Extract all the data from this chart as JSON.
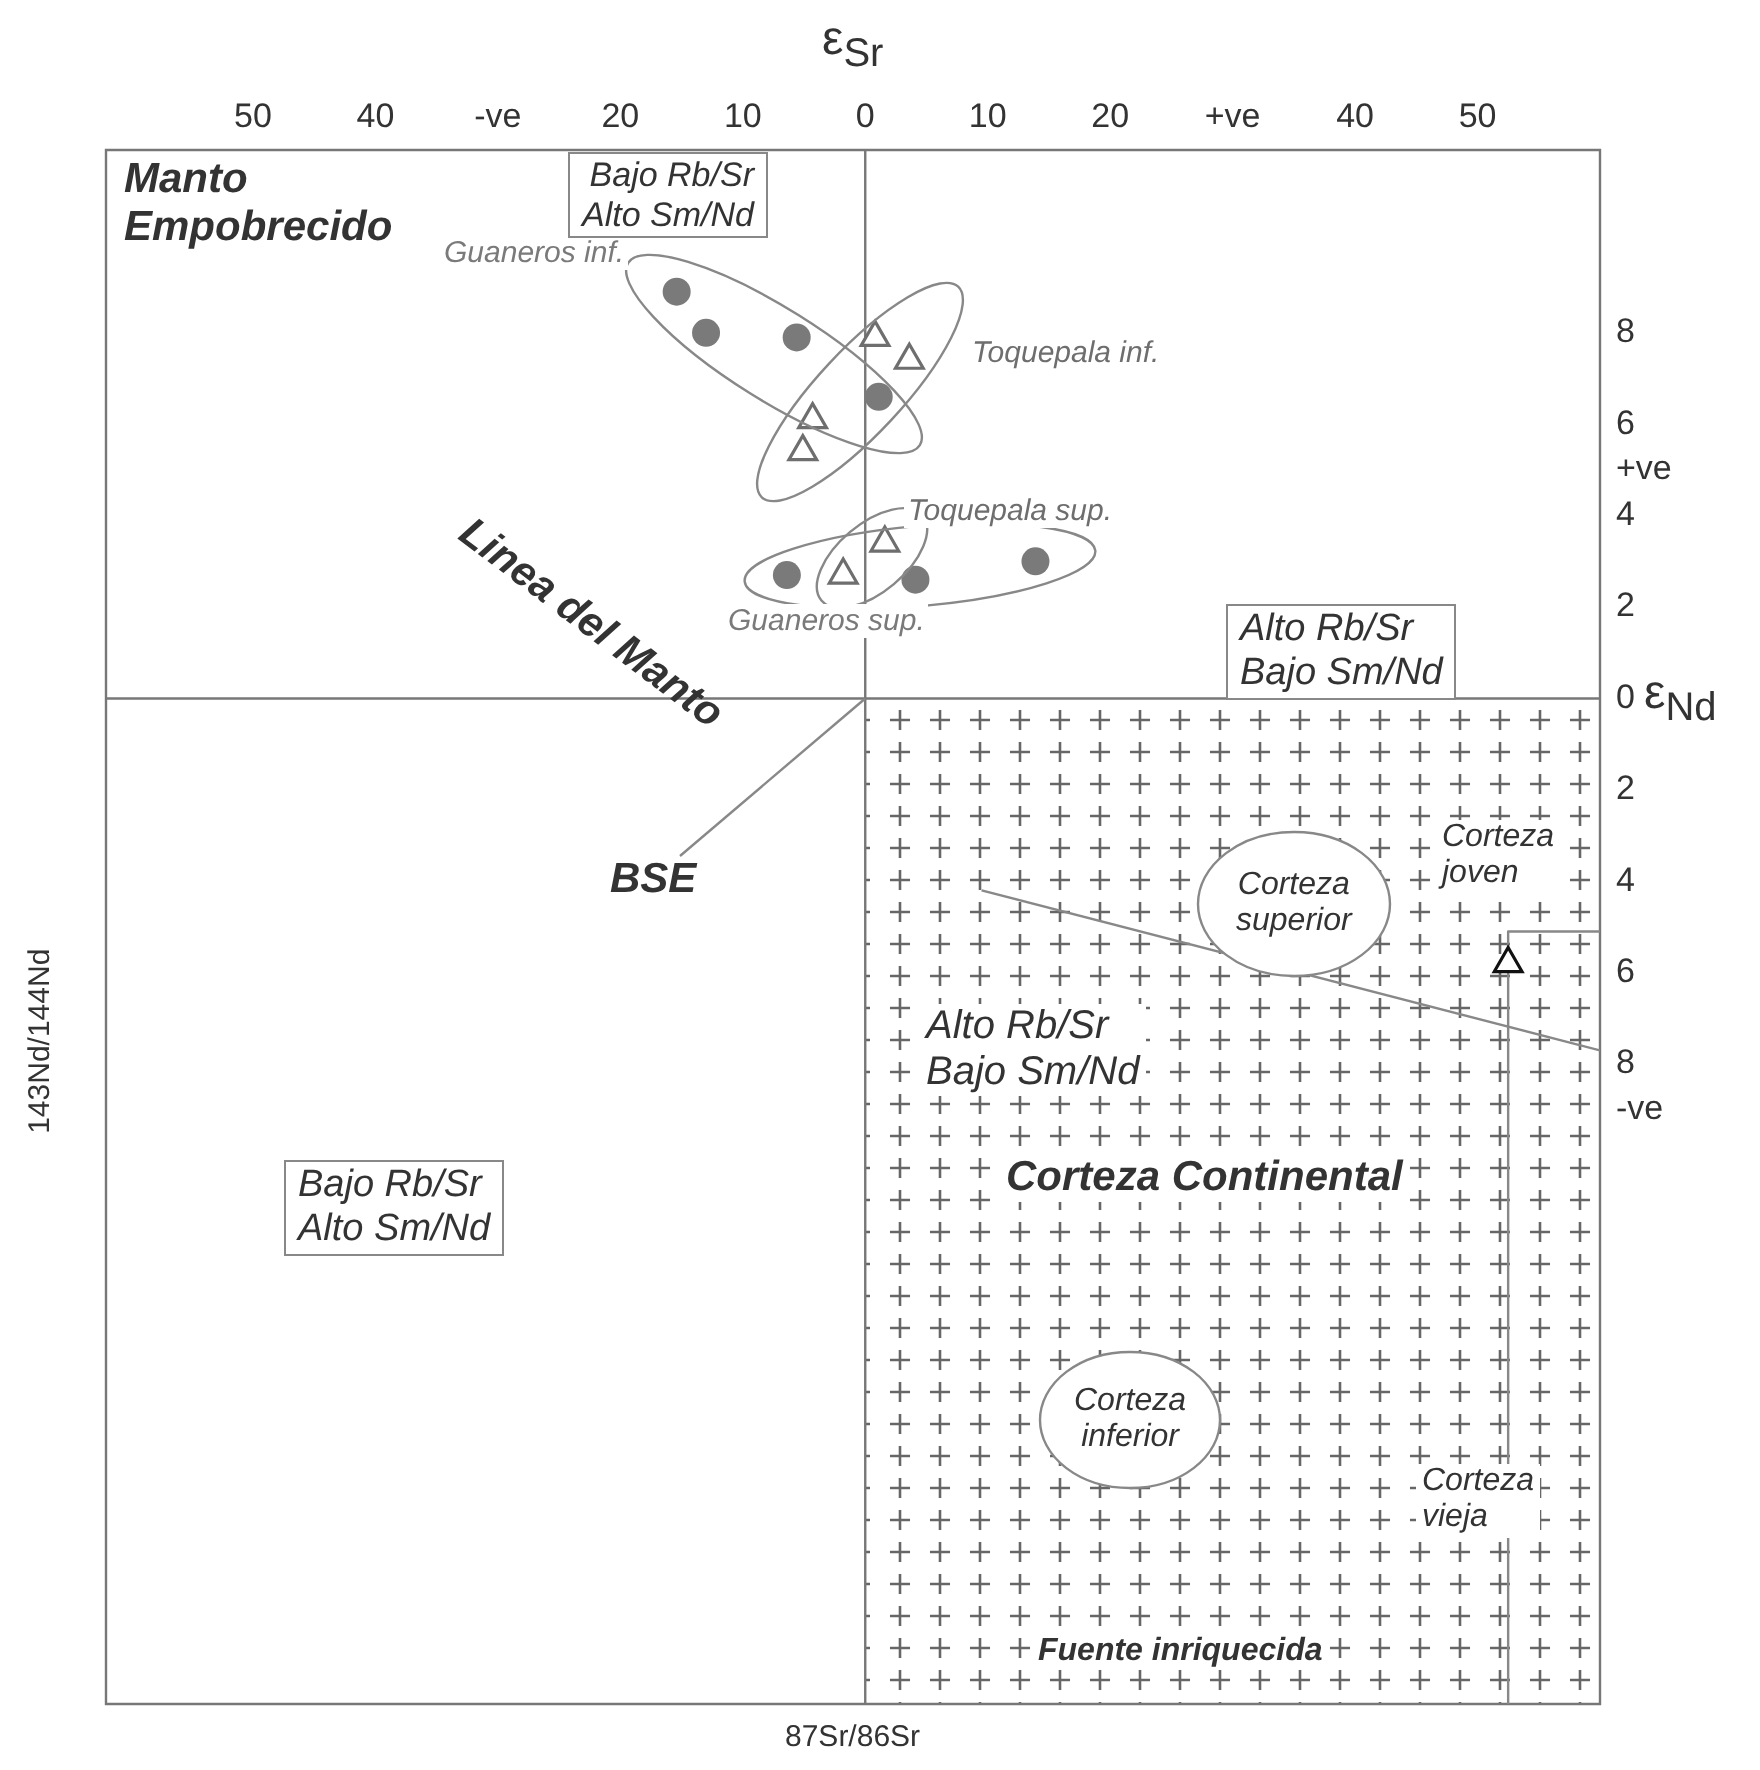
{
  "chart_data": {
    "type": "scatter",
    "xlabel": "ε$_{Sr}$",
    "ylabel": "ε$_{Nd}$",
    "xlim": [
      -62,
      60
    ],
    "ylim": [
      -22,
      12
    ],
    "xticks": [
      {
        "value": -50,
        "label": "50"
      },
      {
        "value": -40,
        "label": "40"
      },
      {
        "value": -30,
        "label": "-ve"
      },
      {
        "value": -20,
        "label": "20"
      },
      {
        "value": -10,
        "label": "10"
      },
      0,
      10,
      20,
      {
        "value": 30,
        "label": "+ve"
      },
      40,
      50
    ],
    "yticks": [
      8,
      6,
      {
        "value": 5,
        "label": "+ve"
      },
      4,
      2,
      0,
      {
        "value": -2,
        "label": "2"
      },
      {
        "value": -4,
        "label": "4"
      },
      {
        "value": -6,
        "label": "6"
      },
      {
        "value": -8,
        "label": "8"
      },
      {
        "value": -9,
        "label": "-ve"
      }
    ],
    "series": [
      {
        "name": "Guaneros inf.",
        "color": "#7a7a7a",
        "marker": "circle",
        "x": [
          -15.4,
          -13.0,
          -5.6,
          1.1
        ],
        "values": [
          8.9,
          8.0,
          7.9,
          6.6
        ]
      },
      {
        "name": "Guaneros sup.",
        "color": "#7a7a7a",
        "marker": "circle",
        "x": [
          -6.4,
          4.1,
          13.9
        ],
        "values": [
          2.7,
          2.6,
          3.0
        ]
      },
      {
        "name": "Toquepala inf.",
        "color": "#6e6e6e",
        "marker": "triangle",
        "x": [
          0.8,
          3.6,
          -4.3,
          -5.1
        ],
        "values": [
          7.9,
          7.4,
          6.1,
          5.4
        ]
      },
      {
        "name": "Toquepala sup.",
        "color": "#6e6e6e",
        "marker": "triangle",
        "x": [
          -1.8,
          1.6
        ],
        "values": [
          2.7,
          3.4
        ]
      },
      {
        "color": "#111111",
        "marker": "triangle",
        "x": [
          52.5
        ],
        "values": [
          -5.8
        ]
      },
      {
        "type": "line",
        "color": "#888888",
        "marker": "none",
        "x": [
          9.5,
          60
        ],
        "values": [
          -4.2,
          -7.7
        ]
      },
      {
        "type": "line",
        "color": "#888888",
        "marker": "none",
        "x": [
          52.5,
          52.5,
          60
        ],
        "values": [
          -22,
          -5.1,
          -5.1
        ]
      },
      {
        "type": "line",
        "color": "#777777",
        "marker": "none",
        "x": [
          0,
          0
        ],
        "values": [
          -22,
          12
        ]
      },
      {
        "type": "line",
        "color": "#777777",
        "marker": "none",
        "x": [
          -62,
          60
        ],
        "values": [
          0,
          0
        ]
      }
    ],
    "annotations": [
      "Manto Empobrecido",
      "Bajo Rb/Sr Alto Sm/Nd",
      "Linea del Manto",
      {
        "text": "BSE",
        "x": 0,
        "y": 0
      },
      "Alto Rb/Sr Bajo Sm/Nd",
      "Alto Rb/Sr Bajo Sm/Nd",
      "Corteza superior",
      "Corteza joven",
      "Corteza Continental",
      "Corteza inferior",
      "Corteza vieja",
      "Fuente inriquecida",
      "Bajo Rb/Sr Alto Sm/Nd",
      "143Nd/144Nd",
      "87Sr/86Sr"
    ],
    "grid": false,
    "legend": false
  }
}
